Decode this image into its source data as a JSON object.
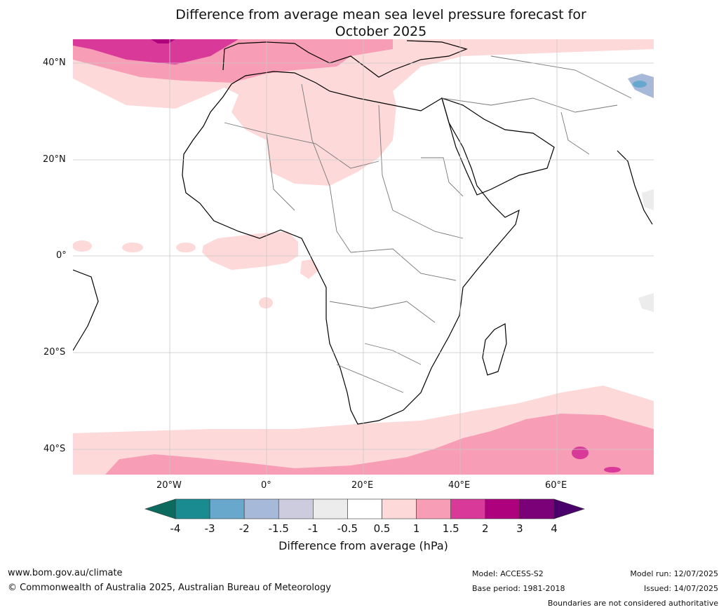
{
  "title_line1": "Difference from average mean sea level pressure forecast for",
  "title_line2": "October 2025",
  "lat_labels": [
    "40°N",
    "20°N",
    "0°",
    "20°S",
    "40°S"
  ],
  "lon_labels": [
    "20°W",
    "0°",
    "20°E",
    "40°E",
    "60°E"
  ],
  "legend": {
    "title": "Difference from average (hPa)",
    "ticks": [
      "-4",
      "-3",
      "-2",
      "-1.5",
      "-1",
      "-0.5",
      "0.5",
      "1",
      "1.5",
      "2",
      "3",
      "4"
    ],
    "colors": [
      "#1a8b91",
      "#68a8cd",
      "#a6b9d9",
      "#ccccde",
      "#ececec",
      "#ffffff",
      "#fdd9d9",
      "#f89db6",
      "#d93a99",
      "#ae017e",
      "#7a0177"
    ],
    "under_color": "#0c6b5e",
    "over_color": "#49006a"
  },
  "footer": {
    "url": "www.bom.gov.au/climate",
    "copyright": "© Commonwealth of Australia 2025, Australian Bureau of Meteorology",
    "model": "Model: ACCESS-S2",
    "base_period": "Base period: 1981-2018",
    "model_run": "Model run: 12/07/2025",
    "issued": "Issued: 14/07/2025",
    "disclaimer": "Boundaries are not considered authoritative"
  }
}
